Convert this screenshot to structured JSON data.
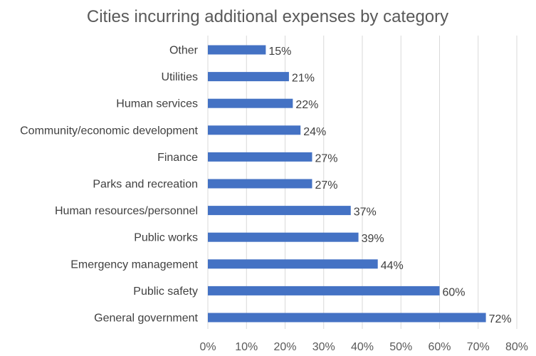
{
  "chart_data": {
    "type": "bar",
    "orientation": "horizontal",
    "title": "Cities incurring additional expenses by category",
    "categories": [
      "Other",
      "Utilities",
      "Human services",
      "Community/economic development",
      "Finance",
      "Parks and recreation",
      "Human resources/personnel",
      "Public works",
      "Emergency management",
      "Public safety",
      "General government"
    ],
    "values": [
      15,
      21,
      22,
      24,
      27,
      27,
      37,
      39,
      44,
      60,
      72
    ],
    "value_labels": [
      "15%",
      "21%",
      "22%",
      "24%",
      "27%",
      "27%",
      "37%",
      "39%",
      "44%",
      "60%",
      "72%"
    ],
    "xlim": [
      0,
      80
    ],
    "xticks": [
      "0%",
      "10%",
      "20%",
      "30%",
      "40%",
      "50%",
      "60%",
      "70%",
      "80%"
    ],
    "grid": true,
    "legend": "none",
    "bar_color": "#4472c4"
  }
}
